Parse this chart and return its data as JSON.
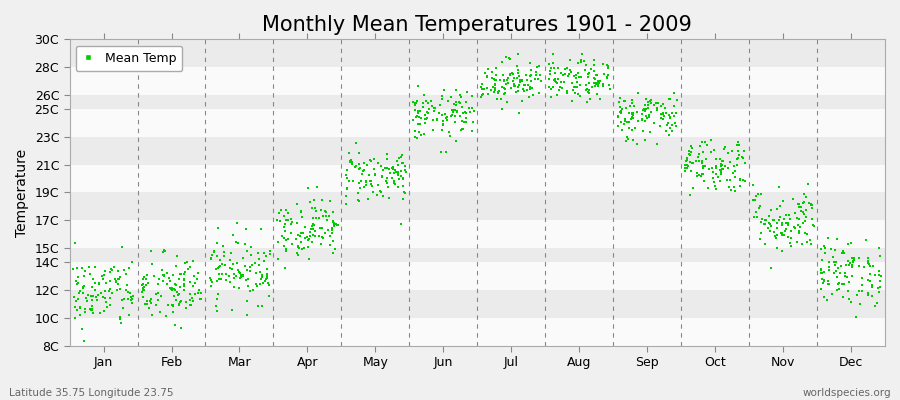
{
  "title": "Monthly Mean Temperatures 1901 - 2009",
  "ylabel": "Temperature",
  "bottom_left": "Latitude 35.75 Longitude 23.75",
  "bottom_right": "worldspecies.org",
  "legend_label": "Mean Temp",
  "months": [
    "Jan",
    "Feb",
    "Mar",
    "Apr",
    "May",
    "Jun",
    "Jul",
    "Aug",
    "Sep",
    "Oct",
    "Nov",
    "Dec"
  ],
  "ylim": [
    8,
    30
  ],
  "yticks": [
    8,
    10,
    12,
    14,
    15,
    17,
    19,
    21,
    23,
    25,
    26,
    28,
    30
  ],
  "ytick_labels": [
    "8C",
    "10C",
    "12C",
    "14C",
    "15C",
    "17C",
    "19C",
    "21C",
    "23C",
    "25C",
    "26C",
    "28C",
    "30C"
  ],
  "mean_temps": [
    11.8,
    12.0,
    13.5,
    16.5,
    20.2,
    24.5,
    27.0,
    27.0,
    24.5,
    21.0,
    17.0,
    13.2
  ],
  "std_temps": [
    1.3,
    1.3,
    1.2,
    1.1,
    1.0,
    0.9,
    0.8,
    0.75,
    0.9,
    1.0,
    1.2,
    1.2
  ],
  "n_years": 109,
  "dot_color": "#00CC00",
  "dot_size": 2.5,
  "background_color": "#F0F0F0",
  "band_light_color": "#FAFAFA",
  "band_dark_color": "#EBEBEB",
  "grid_color": "#888888",
  "title_fontsize": 15,
  "axis_fontsize": 10,
  "tick_fontsize": 9,
  "seed": 42
}
